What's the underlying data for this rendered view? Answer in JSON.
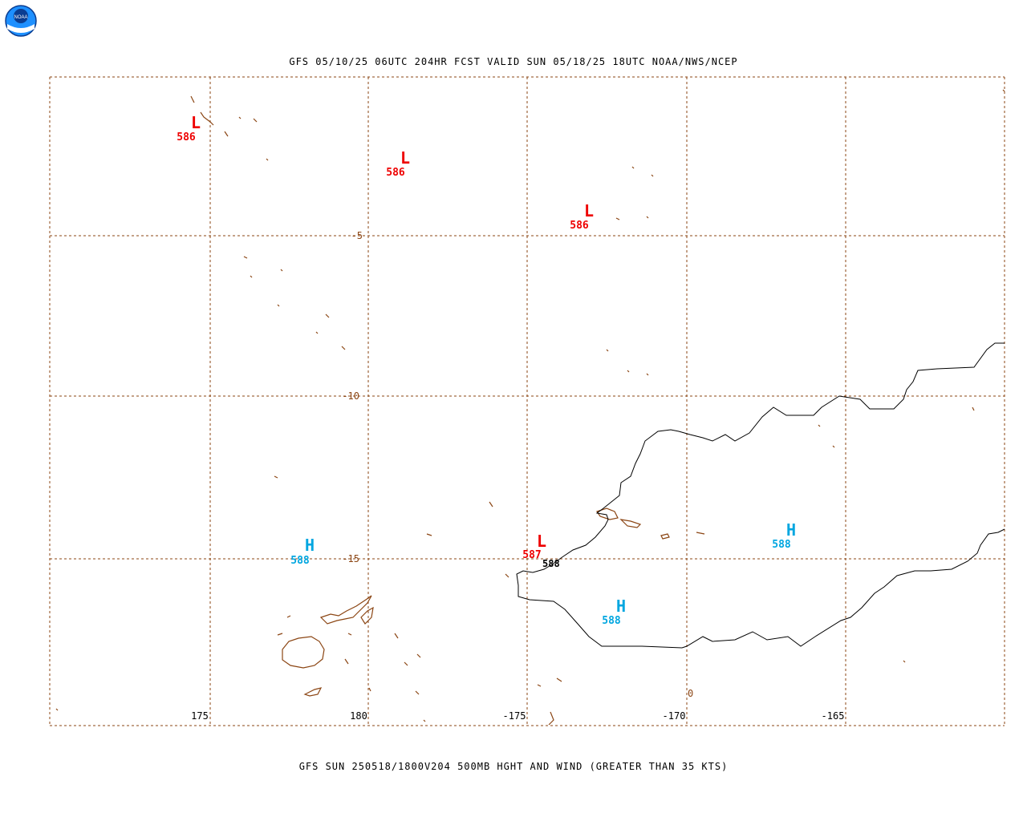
{
  "header": {
    "title": "GFS 05/10/25 06UTC 204HR FCST VALID SUN 05/18/25 18UTC NOAA/NWS/NCEP",
    "logo_text": "NOAA"
  },
  "footer": {
    "caption": "GFS SUN 250518/1800V204 500MB HGHT AND WIND (GREATER THAN 35 KTS)"
  },
  "map": {
    "lon_labels": [
      "175",
      "180",
      "-175",
      "-170",
      "-165"
    ],
    "lat_labels": [
      "-5",
      "-10",
      "-15"
    ],
    "contour_label": "588",
    "stray_label": "0",
    "pressure_centers": [
      {
        "type": "L",
        "value": "586"
      },
      {
        "type": "L",
        "value": "586"
      },
      {
        "type": "L",
        "value": "586"
      },
      {
        "type": "L",
        "value": "587"
      },
      {
        "type": "H",
        "value": "588"
      },
      {
        "type": "H",
        "value": "588"
      },
      {
        "type": "H",
        "value": "588"
      }
    ]
  },
  "colors": {
    "low": "#ee0000",
    "high": "#00a6e0",
    "grid": "#8b4513",
    "coast": "#8b4513",
    "contour": "#000000",
    "text": "#000000"
  }
}
